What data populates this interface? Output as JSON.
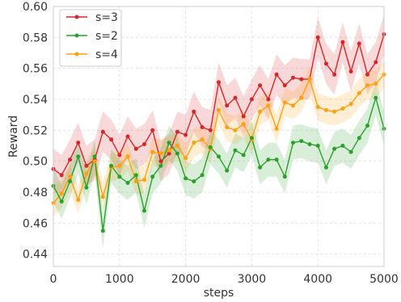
{
  "chart_data": {
    "type": "line",
    "xlabel": "steps",
    "ylabel": "Reward",
    "xlim": [
      0,
      5000
    ],
    "ylim": [
      0.432,
      0.6
    ],
    "xticks": [
      0,
      1000,
      2000,
      3000,
      4000,
      5000
    ],
    "yticks": [
      0.44,
      0.46,
      0.48,
      0.5,
      0.52,
      0.54,
      0.56,
      0.58,
      0.6
    ],
    "grid": true,
    "legend_position": "top-left",
    "x": [
      0,
      125,
      250,
      375,
      500,
      625,
      750,
      875,
      1000,
      1125,
      1250,
      1375,
      1500,
      1625,
      1750,
      1875,
      2000,
      2125,
      2250,
      2375,
      2500,
      2625,
      2750,
      2875,
      3000,
      3125,
      3250,
      3375,
      3500,
      3625,
      3750,
      3875,
      4000,
      4125,
      4250,
      4375,
      4500,
      4625,
      4750,
      4875,
      5000
    ],
    "series": [
      {
        "name": "s=3",
        "color": "#d62728",
        "band_width": 0.013,
        "values": [
          0.495,
          0.491,
          0.501,
          0.512,
          0.497,
          0.501,
          0.519,
          0.514,
          0.504,
          0.516,
          0.508,
          0.511,
          0.52,
          0.5,
          0.505,
          0.519,
          0.517,
          0.532,
          0.522,
          0.52,
          0.551,
          0.536,
          0.541,
          0.529,
          0.54,
          0.549,
          0.54,
          0.556,
          0.549,
          0.554,
          0.553,
          0.553,
          0.58,
          0.563,
          0.556,
          0.577,
          0.558,
          0.576,
          0.556,
          0.564,
          0.582
        ]
      },
      {
        "name": "s=2",
        "color": "#2ca02c",
        "band_width": 0.011,
        "values": [
          0.484,
          0.474,
          0.487,
          0.503,
          0.483,
          0.503,
          0.455,
          0.497,
          0.49,
          0.486,
          0.491,
          0.468,
          0.49,
          0.497,
          0.512,
          0.505,
          0.489,
          0.487,
          0.491,
          0.509,
          0.503,
          0.494,
          0.507,
          0.504,
          0.515,
          0.496,
          0.501,
          0.501,
          0.49,
          0.512,
          0.513,
          0.511,
          0.51,
          0.496,
          0.508,
          0.51,
          0.506,
          0.515,
          0.523,
          0.541,
          0.521
        ]
      },
      {
        "name": "s=4",
        "color": "#ff9f0e",
        "band_width": 0.009,
        "values": [
          0.473,
          0.479,
          0.49,
          0.475,
          0.492,
          0.5,
          0.477,
          0.496,
          0.497,
          0.503,
          0.487,
          0.488,
          0.506,
          0.505,
          0.507,
          0.51,
          0.502,
          0.512,
          0.514,
          0.508,
          0.533,
          0.522,
          0.52,
          0.524,
          0.514,
          0.532,
          0.536,
          0.521,
          0.538,
          0.536,
          0.541,
          0.553,
          0.535,
          0.533,
          0.532,
          0.534,
          0.537,
          0.544,
          0.549,
          0.55,
          0.556
        ]
      }
    ]
  }
}
